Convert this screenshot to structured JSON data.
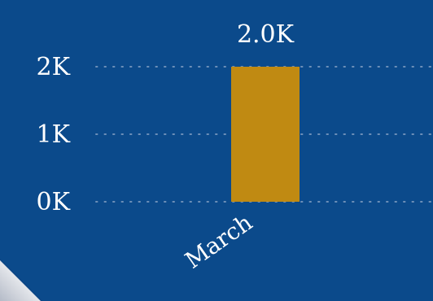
{
  "chart_data": {
    "type": "bar",
    "categories": [
      "March"
    ],
    "values": [
      2000
    ],
    "data_labels": [
      "2.0K"
    ],
    "y_ticks": [
      "0K",
      "1K",
      "2K"
    ],
    "ylim": [
      0,
      2000
    ],
    "grid": true,
    "title": "",
    "xlabel": "",
    "ylabel": ""
  },
  "colors": {
    "background": "#0b4a8b",
    "bar": "#c08a12",
    "grid": "#6d8fb8",
    "text": "#ffffff"
  }
}
